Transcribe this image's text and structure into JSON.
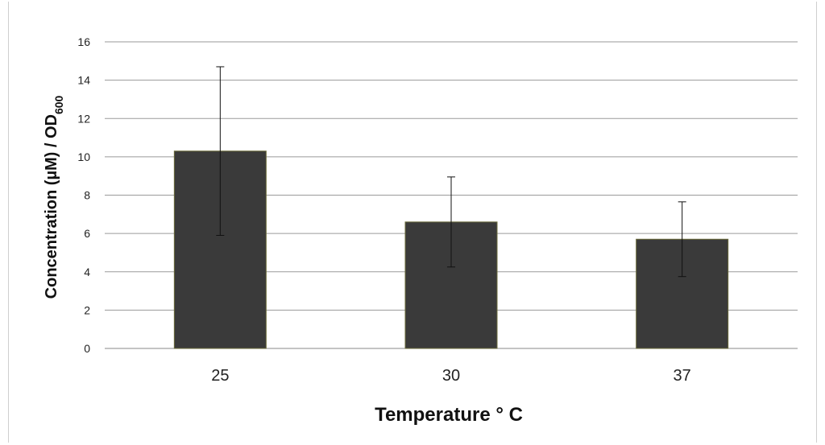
{
  "chart_data": {
    "type": "bar",
    "categories": [
      "25",
      "30",
      "37"
    ],
    "values": [
      10.3,
      6.6,
      5.7
    ],
    "errors": [
      4.4,
      2.35,
      1.95
    ],
    "title": "",
    "xlabel": "Temperature ° C",
    "ylabel_main": "Concentration (µM) / OD",
    "ylabel_sub": "600",
    "ylim": [
      0,
      16
    ],
    "yticks": [
      "0",
      "2",
      "4",
      "6",
      "8",
      "10",
      "12",
      "14",
      "16"
    ],
    "grid": true,
    "bar_color": "#3a3a3a",
    "bar_edge_color": "#6b6b3a",
    "legend": "none"
  }
}
